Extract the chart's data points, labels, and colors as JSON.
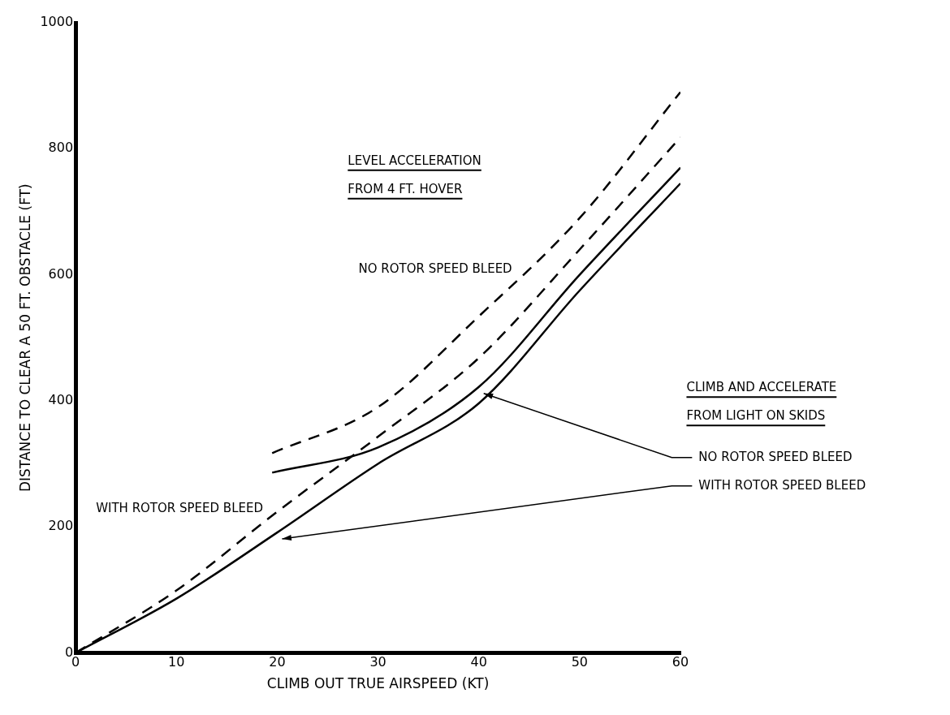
{
  "chart_data": {
    "type": "line",
    "xlabel": "CLIMB OUT TRUE AIRSPEED (KT)",
    "ylabel": "DISTANCE TO CLEAR A 50 FT. OBSTACLE (FT)",
    "xlim": [
      0,
      60
    ],
    "xticks": [
      0,
      10,
      20,
      30,
      40,
      50,
      60
    ],
    "ylim": [
      0,
      1000
    ],
    "yticks": [
      0,
      200,
      400,
      600,
      800,
      1000
    ],
    "grid": false,
    "legend": false,
    "marker": "none",
    "annotations": [
      "LEVEL ACCELERATION",
      "FROM 4 FT. HOVER",
      "CLIMB AND ACCELERATE",
      "FROM LIGHT ON SKIDS"
    ],
    "series": [
      {
        "name": "NO ROTOR SPEED BLEED",
        "color": "#000000",
        "line_style": "dashed",
        "x": [
          19.5,
          30,
          40,
          50,
          60
        ],
        "values": [
          317,
          390,
          534,
          690,
          890
        ]
      },
      {
        "name": "WITH ROTOR SPEED BLEED",
        "color": "#000000",
        "line_style": "dashed",
        "x": [
          0,
          10,
          20,
          30,
          40,
          50,
          60
        ],
        "values": [
          0,
          99,
          224,
          343,
          468,
          640,
          818
        ]
      },
      {
        "name": "NO ROTOR SPEED BLEED",
        "color": "#000000",
        "line_style": "solid",
        "x": [
          19.5,
          30,
          40,
          50,
          60
        ],
        "values": [
          286,
          326,
          422,
          600,
          770
        ]
      },
      {
        "name": "WITH ROTOR SPEED BLEED",
        "color": "#000000",
        "line_style": "solid",
        "x": [
          0,
          10,
          20,
          30,
          40,
          50,
          60
        ],
        "values": [
          0,
          86,
          191,
          300,
          396,
          575,
          745
        ]
      }
    ]
  }
}
